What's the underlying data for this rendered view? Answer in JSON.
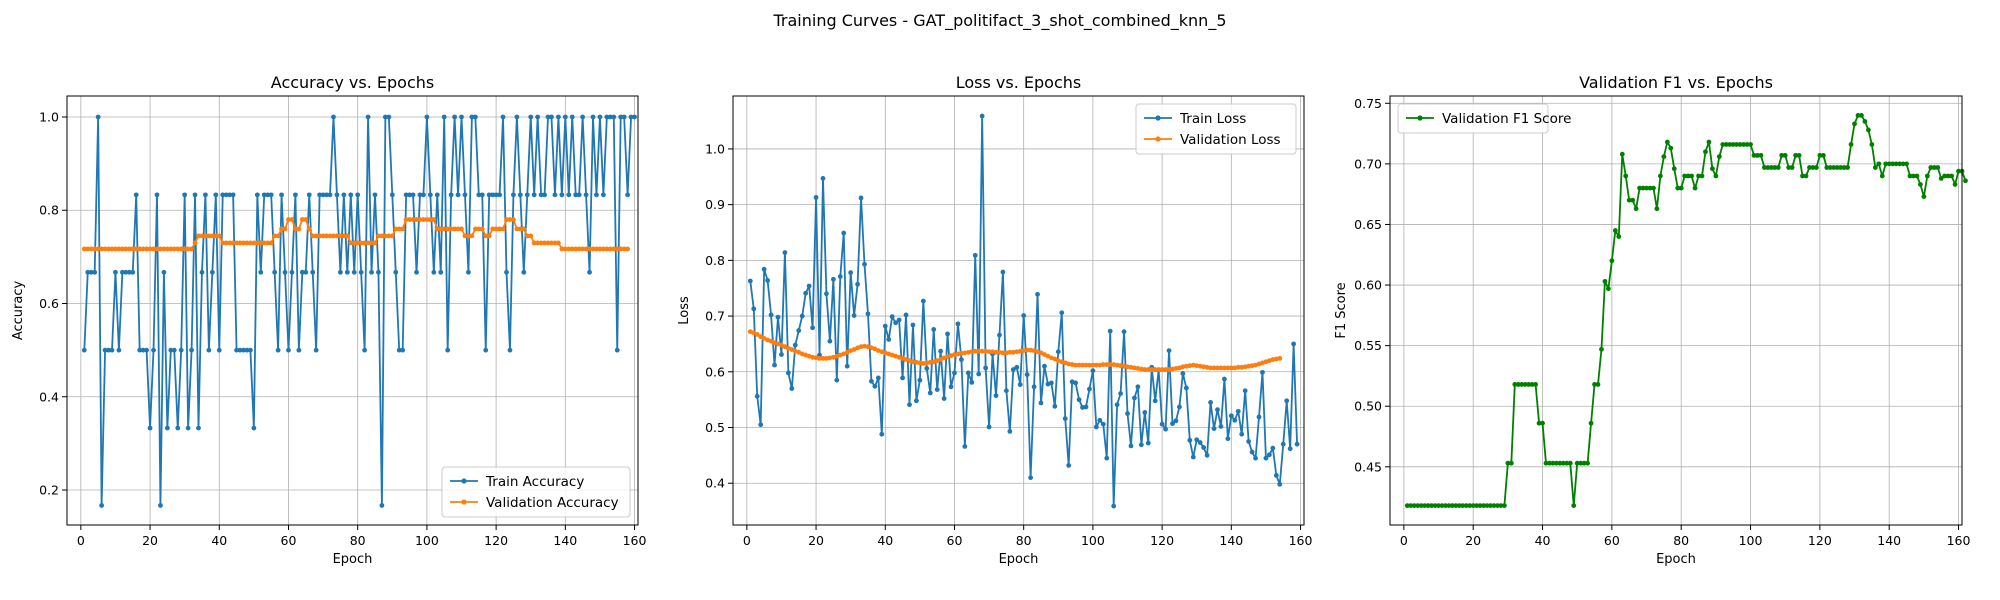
{
  "suptitle": "Training Curves - GAT_politifact_3_shot_combined_knn_5",
  "colors": {
    "blue": "#1f77b4",
    "orange": "#ff7f0e",
    "green": "#008000",
    "grid": "#b0b0b0"
  },
  "chart_data": [
    {
      "type": "line",
      "title": "Accuracy vs. Epochs",
      "xlabel": "Epoch",
      "ylabel": "Accuracy",
      "xlim": [
        -4,
        161
      ],
      "ylim": [
        0.125,
        1.045
      ],
      "xticks": [
        0,
        20,
        40,
        60,
        80,
        100,
        120,
        140,
        160
      ],
      "yticks": [
        0.2,
        0.4,
        0.6,
        0.8,
        1.0
      ],
      "ytick_labels": [
        "0.2",
        "0.4",
        "0.6",
        "0.8",
        "1.0"
      ],
      "grid": true,
      "legend": "lower-right",
      "series": [
        {
          "name": "Train Accuracy",
          "color": "#1f77b4",
          "x_start": 1,
          "values": [
            0.5,
            0.667,
            0.667,
            0.667,
            1.0,
            0.167,
            0.5,
            0.5,
            0.5,
            0.667,
            0.5,
            0.667,
            0.667,
            0.667,
            0.667,
            0.833,
            0.5,
            0.5,
            0.5,
            0.333,
            0.5,
            0.833,
            0.167,
            0.667,
            0.333,
            0.5,
            0.5,
            0.333,
            0.5,
            0.833,
            0.333,
            0.5,
            0.833,
            0.333,
            0.667,
            0.833,
            0.5,
            0.667,
            0.833,
            0.5,
            0.833,
            0.833,
            0.833,
            0.833,
            0.5,
            0.5,
            0.5,
            0.5,
            0.5,
            0.333,
            0.833,
            0.667,
            0.833,
            0.833,
            0.833,
            0.667,
            0.5,
            0.833,
            0.667,
            0.5,
            0.667,
            0.833,
            0.5,
            0.667,
            0.667,
            0.833,
            0.667,
            0.5,
            0.833,
            0.833,
            0.833,
            0.833,
            1.0,
            0.833,
            0.667,
            0.833,
            0.667,
            0.833,
            0.667,
            0.833,
            0.667,
            0.5,
            1.0,
            0.667,
            0.833,
            0.667,
            0.167,
            1.0,
            1.0,
            0.833,
            0.667,
            0.5,
            0.5,
            0.833,
            0.833,
            0.833,
            0.667,
            0.833,
            0.833,
            1.0,
            0.833,
            0.667,
            0.833,
            0.667,
            1.0,
            0.5,
            0.833,
            1.0,
            0.833,
            1.0,
            0.833,
            0.667,
            1.0,
            1.0,
            0.833,
            0.833,
            0.5,
            0.833,
            0.833,
            0.833,
            0.833,
            1.0,
            0.667,
            0.5,
            0.833,
            1.0,
            0.833,
            0.667,
            0.833,
            1.0,
            0.833,
            1.0,
            0.833,
            0.833,
            1.0,
            1.0,
            0.833,
            1.0,
            0.833,
            1.0,
            0.833,
            1.0,
            0.833,
            0.833,
            1.0,
            0.833,
            0.667,
            1.0,
            0.833,
            1.0,
            0.833,
            1.0,
            1.0,
            1.0,
            0.5,
            1.0,
            1.0,
            0.833,
            1.0,
            1.0
          ]
        },
        {
          "name": "Validation Accuracy",
          "color": "#ff7f0e",
          "x_start": 1,
          "values": [
            0.717,
            0.717,
            0.717,
            0.717,
            0.717,
            0.717,
            0.717,
            0.717,
            0.717,
            0.717,
            0.717,
            0.717,
            0.717,
            0.717,
            0.717,
            0.717,
            0.717,
            0.717,
            0.717,
            0.717,
            0.717,
            0.717,
            0.717,
            0.717,
            0.717,
            0.717,
            0.717,
            0.717,
            0.717,
            0.717,
            0.717,
            0.717,
            0.73,
            0.745,
            0.745,
            0.745,
            0.745,
            0.745,
            0.745,
            0.745,
            0.73,
            0.73,
            0.73,
            0.73,
            0.73,
            0.73,
            0.73,
            0.73,
            0.73,
            0.73,
            0.73,
            0.73,
            0.73,
            0.73,
            0.73,
            0.745,
            0.745,
            0.76,
            0.76,
            0.78,
            0.78,
            0.76,
            0.76,
            0.78,
            0.78,
            0.76,
            0.745,
            0.745,
            0.745,
            0.745,
            0.745,
            0.745,
            0.745,
            0.745,
            0.745,
            0.745,
            0.745,
            0.73,
            0.73,
            0.73,
            0.73,
            0.73,
            0.73,
            0.73,
            0.73,
            0.745,
            0.745,
            0.745,
            0.745,
            0.745,
            0.76,
            0.76,
            0.76,
            0.78,
            0.78,
            0.78,
            0.78,
            0.78,
            0.78,
            0.78,
            0.78,
            0.78,
            0.76,
            0.76,
            0.76,
            0.76,
            0.76,
            0.76,
            0.76,
            0.76,
            0.745,
            0.745,
            0.745,
            0.76,
            0.76,
            0.76,
            0.745,
            0.745,
            0.76,
            0.76,
            0.76,
            0.76,
            0.78,
            0.78,
            0.78,
            0.76,
            0.76,
            0.76,
            0.745,
            0.745,
            0.73,
            0.73,
            0.73,
            0.73,
            0.73,
            0.73,
            0.73,
            0.73,
            0.717,
            0.717,
            0.717,
            0.717,
            0.717,
            0.717,
            0.717,
            0.717,
            0.717,
            0.717,
            0.717,
            0.717,
            0.717,
            0.717,
            0.717,
            0.717,
            0.717,
            0.717,
            0.717,
            0.717
          ]
        }
      ]
    },
    {
      "type": "line",
      "title": "Loss vs. Epochs",
      "xlabel": "Epoch",
      "ylabel": "Loss",
      "xlim": [
        -4,
        161
      ],
      "ylim": [
        0.325,
        1.095
      ],
      "xticks": [
        0,
        20,
        40,
        60,
        80,
        100,
        120,
        140,
        160
      ],
      "yticks": [
        0.4,
        0.5,
        0.6,
        0.7,
        0.8,
        0.9,
        1.0
      ],
      "ytick_labels": [
        "0.4",
        "0.5",
        "0.6",
        "0.7",
        "0.8",
        "0.9",
        "1.0"
      ],
      "grid": true,
      "legend": "upper-right",
      "series": [
        {
          "name": "Train Loss",
          "color": "#1f77b4",
          "x_start": 1,
          "values": [
            0.763,
            0.713,
            0.556,
            0.505,
            0.784,
            0.764,
            0.702,
            0.612,
            0.698,
            0.631,
            0.814,
            0.598,
            0.57,
            0.648,
            0.674,
            0.7,
            0.741,
            0.754,
            0.679,
            0.913,
            0.63,
            0.947,
            0.74,
            0.655,
            0.766,
            0.585,
            0.771,
            0.849,
            0.61,
            0.778,
            0.701,
            0.757,
            0.912,
            0.793,
            0.704,
            0.583,
            0.574,
            0.589,
            0.488,
            0.682,
            0.658,
            0.699,
            0.688,
            0.693,
            0.589,
            0.702,
            0.541,
            0.684,
            0.548,
            0.585,
            0.727,
            0.606,
            0.562,
            0.676,
            0.568,
            0.637,
            0.552,
            0.668,
            0.573,
            0.598,
            0.686,
            0.622,
            0.466,
            0.598,
            0.581,
            0.809,
            0.596,
            1.059,
            0.607,
            0.501,
            0.632,
            0.557,
            0.666,
            0.779,
            0.566,
            0.493,
            0.604,
            0.608,
            0.577,
            0.701,
            0.595,
            0.41,
            0.573,
            0.739,
            0.544,
            0.61,
            0.578,
            0.58,
            0.538,
            0.636,
            0.706,
            0.516,
            0.432,
            0.582,
            0.58,
            0.55,
            0.536,
            0.537,
            0.569,
            0.602,
            0.501,
            0.513,
            0.506,
            0.445,
            0.673,
            0.359,
            0.541,
            0.561,
            0.672,
            0.525,
            0.467,
            0.553,
            0.573,
            0.469,
            0.527,
            0.472,
            0.608,
            0.548,
            0.603,
            0.506,
            0.497,
            0.638,
            0.507,
            0.512,
            0.537,
            0.597,
            0.571,
            0.477,
            0.447,
            0.478,
            0.473,
            0.464,
            0.45,
            0.545,
            0.498,
            0.532,
            0.502,
            0.587,
            0.48,
            0.521,
            0.513,
            0.529,
            0.488,
            0.566,
            0.475,
            0.456,
            0.445,
            0.519,
            0.599,
            0.445,
            0.451,
            0.463,
            0.414,
            0.398,
            0.47,
            0.548,
            0.462,
            0.65,
            0.47
          ]
        },
        {
          "name": "Validation Loss",
          "color": "#ff7f0e",
          "x_start": 1,
          "values": [
            0.672,
            0.67,
            0.667,
            0.663,
            0.66,
            0.657,
            0.655,
            0.652,
            0.65,
            0.648,
            0.645,
            0.642,
            0.64,
            0.637,
            0.635,
            0.632,
            0.63,
            0.628,
            0.626,
            0.625,
            0.624,
            0.624,
            0.624,
            0.625,
            0.626,
            0.628,
            0.63,
            0.632,
            0.635,
            0.638,
            0.64,
            0.643,
            0.645,
            0.646,
            0.645,
            0.643,
            0.641,
            0.638,
            0.636,
            0.634,
            0.632,
            0.63,
            0.628,
            0.626,
            0.624,
            0.622,
            0.62,
            0.618,
            0.617,
            0.616,
            0.615,
            0.616,
            0.617,
            0.618,
            0.62,
            0.622,
            0.625,
            0.627,
            0.629,
            0.631,
            0.632,
            0.633,
            0.634,
            0.635,
            0.636,
            0.637,
            0.637,
            0.637,
            0.637,
            0.636,
            0.636,
            0.635,
            0.635,
            0.634,
            0.634,
            0.635,
            0.635,
            0.636,
            0.637,
            0.638,
            0.639,
            0.639,
            0.638,
            0.636,
            0.634,
            0.631,
            0.628,
            0.625,
            0.623,
            0.62,
            0.618,
            0.616,
            0.614,
            0.613,
            0.612,
            0.612,
            0.612,
            0.612,
            0.612,
            0.612,
            0.612,
            0.612,
            0.613,
            0.613,
            0.613,
            0.613,
            0.612,
            0.611,
            0.61,
            0.609,
            0.608,
            0.607,
            0.606,
            0.605,
            0.604,
            0.604,
            0.604,
            0.604,
            0.604,
            0.604,
            0.604,
            0.604,
            0.605,
            0.606,
            0.607,
            0.609,
            0.61,
            0.611,
            0.612,
            0.611,
            0.61,
            0.609,
            0.608,
            0.607,
            0.607,
            0.607,
            0.607,
            0.607,
            0.607,
            0.607,
            0.607,
            0.608,
            0.608,
            0.609,
            0.61,
            0.611,
            0.612,
            0.614,
            0.616,
            0.618,
            0.62,
            0.622,
            0.623,
            0.624
          ]
        }
      ]
    },
    {
      "type": "line",
      "title": "Validation F1 vs. Epochs",
      "xlabel": "Epoch",
      "ylabel": "F1 Score",
      "xlim": [
        -4,
        161
      ],
      "ylim": [
        0.402,
        0.756
      ],
      "xticks": [
        0,
        20,
        40,
        60,
        80,
        100,
        120,
        140,
        160
      ],
      "yticks": [
        0.45,
        0.5,
        0.55,
        0.6,
        0.65,
        0.7,
        0.75
      ],
      "ytick_labels": [
        "0.45",
        "0.50",
        "0.55",
        "0.60",
        "0.65",
        "0.70",
        "0.75"
      ],
      "grid": true,
      "legend": "upper-left",
      "series": [
        {
          "name": "Validation F1 Score",
          "color": "#008000",
          "x_start": 1,
          "values": [
            0.418,
            0.418,
            0.418,
            0.418,
            0.418,
            0.418,
            0.418,
            0.418,
            0.418,
            0.418,
            0.418,
            0.418,
            0.418,
            0.418,
            0.418,
            0.418,
            0.418,
            0.418,
            0.418,
            0.418,
            0.418,
            0.418,
            0.418,
            0.418,
            0.418,
            0.418,
            0.418,
            0.418,
            0.418,
            0.453,
            0.453,
            0.518,
            0.518,
            0.518,
            0.518,
            0.518,
            0.518,
            0.518,
            0.486,
            0.486,
            0.453,
            0.453,
            0.453,
            0.453,
            0.453,
            0.453,
            0.453,
            0.453,
            0.418,
            0.453,
            0.453,
            0.453,
            0.453,
            0.486,
            0.518,
            0.518,
            0.547,
            0.603,
            0.597,
            0.62,
            0.645,
            0.64,
            0.708,
            0.69,
            0.67,
            0.67,
            0.663,
            0.68,
            0.68,
            0.68,
            0.68,
            0.68,
            0.663,
            0.69,
            0.706,
            0.718,
            0.713,
            0.696,
            0.68,
            0.68,
            0.69,
            0.69,
            0.69,
            0.68,
            0.69,
            0.69,
            0.71,
            0.718,
            0.696,
            0.69,
            0.706,
            0.716,
            0.716,
            0.716,
            0.716,
            0.716,
            0.716,
            0.716,
            0.716,
            0.716,
            0.707,
            0.707,
            0.707,
            0.697,
            0.697,
            0.697,
            0.697,
            0.697,
            0.707,
            0.707,
            0.697,
            0.697,
            0.707,
            0.707,
            0.69,
            0.69,
            0.697,
            0.697,
            0.697,
            0.707,
            0.707,
            0.697,
            0.697,
            0.697,
            0.697,
            0.697,
            0.697,
            0.697,
            0.716,
            0.733,
            0.74,
            0.74,
            0.735,
            0.728,
            0.716,
            0.697,
            0.7,
            0.69,
            0.7,
            0.7,
            0.7,
            0.7,
            0.7,
            0.7,
            0.7,
            0.69,
            0.69,
            0.69,
            0.683,
            0.673,
            0.69,
            0.697,
            0.697,
            0.697,
            0.688,
            0.69,
            0.69,
            0.69,
            0.683,
            0.694,
            0.694,
            0.686
          ]
        }
      ]
    }
  ]
}
